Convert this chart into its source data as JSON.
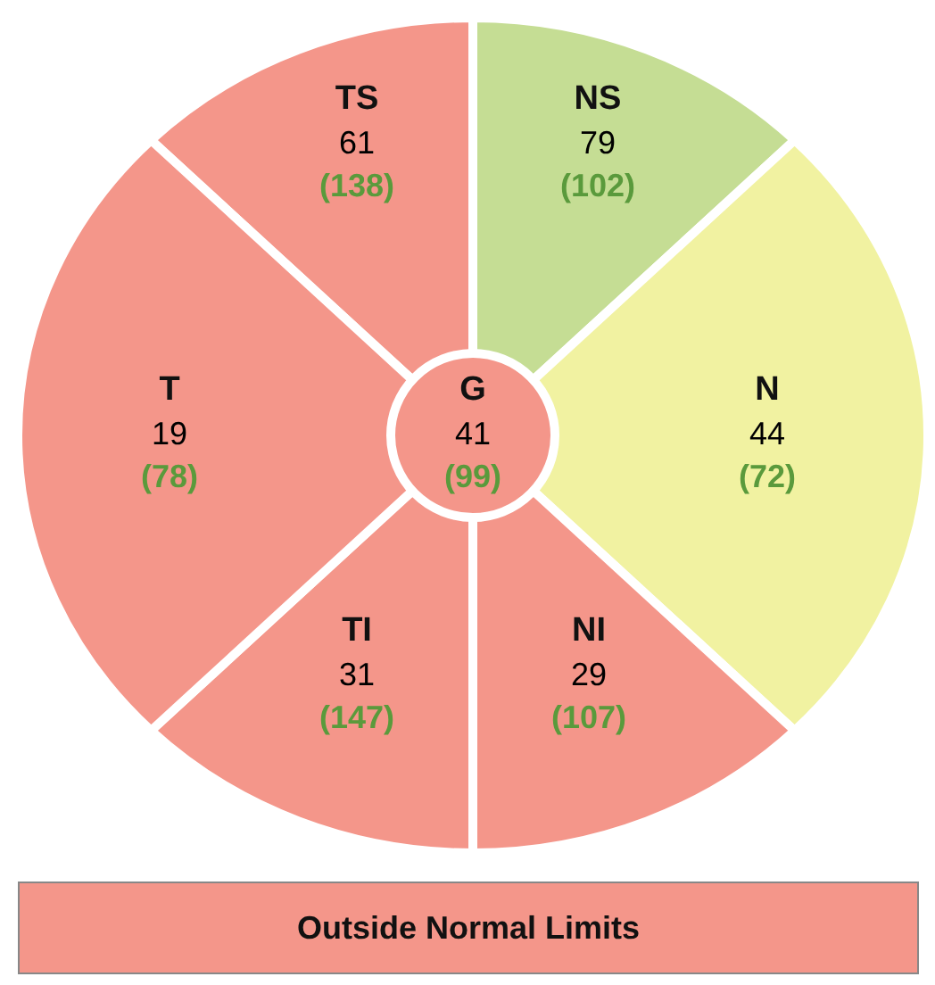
{
  "chart_data": {
    "type": "other",
    "categories": [
      "TS",
      "NS",
      "N",
      "NI",
      "TI",
      "T",
      "G"
    ],
    "series": [
      {
        "values": [
          61,
          79,
          44,
          29,
          31,
          19,
          41
        ],
        "colors": [
          "#f4968a",
          "#c5dd94",
          "#f1f2a1",
          "#f4968a",
          "#f4968a",
          "#f4968a",
          "#f4968a"
        ],
        "color": "#000000"
      },
      {
        "values": [
          138,
          102,
          72,
          107,
          147,
          78,
          99
        ],
        "color": "#5a9a3c",
        "value_labels": [
          "(138)",
          "(102)",
          "(72)",
          "(107)",
          "(147)",
          "(78)",
          "(99)"
        ]
      }
    ],
    "data_labels": true,
    "annotations": [
      "Outside Normal Limits"
    ]
  }
}
